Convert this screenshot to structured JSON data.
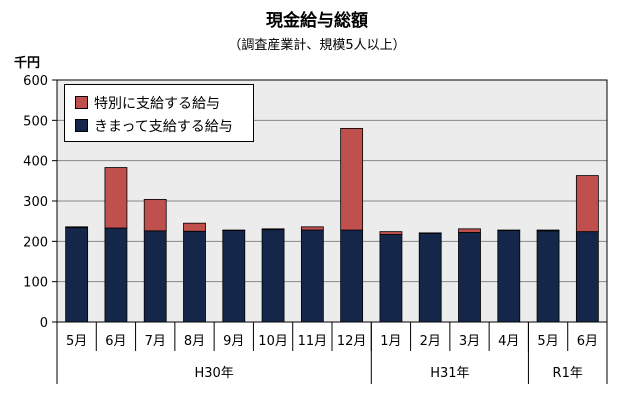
{
  "chart_data": {
    "type": "bar",
    "stacked": true,
    "title": "現金給与総額",
    "subtitle": "（調査産業計、規模5人以上）",
    "ylabel": "千円",
    "ylim": [
      0,
      600
    ],
    "yticks": [
      0,
      100,
      200,
      300,
      400,
      500,
      600
    ],
    "grid": true,
    "legend_position": "top-left",
    "categories": [
      "5月",
      "6月",
      "7月",
      "8月",
      "9月",
      "10月",
      "11月",
      "12月",
      "1月",
      "2月",
      "3月",
      "4月",
      "5月",
      "6月"
    ],
    "groups": [
      {
        "label": "H30年",
        "count": 8
      },
      {
        "label": "H31年",
        "count": 4
      },
      {
        "label": "R1年",
        "count": 2
      }
    ],
    "series": [
      {
        "name": "きまって支給する給与",
        "color": "#14274a",
        "values": [
          234,
          233,
          226,
          225,
          227,
          229,
          228,
          228,
          217,
          220,
          222,
          227,
          226,
          224
        ]
      },
      {
        "name": "特別に支給する給与",
        "color": "#c0504d",
        "values": [
          2,
          150,
          78,
          20,
          1,
          2,
          8,
          252,
          7,
          1,
          9,
          1,
          2,
          139
        ]
      }
    ]
  }
}
